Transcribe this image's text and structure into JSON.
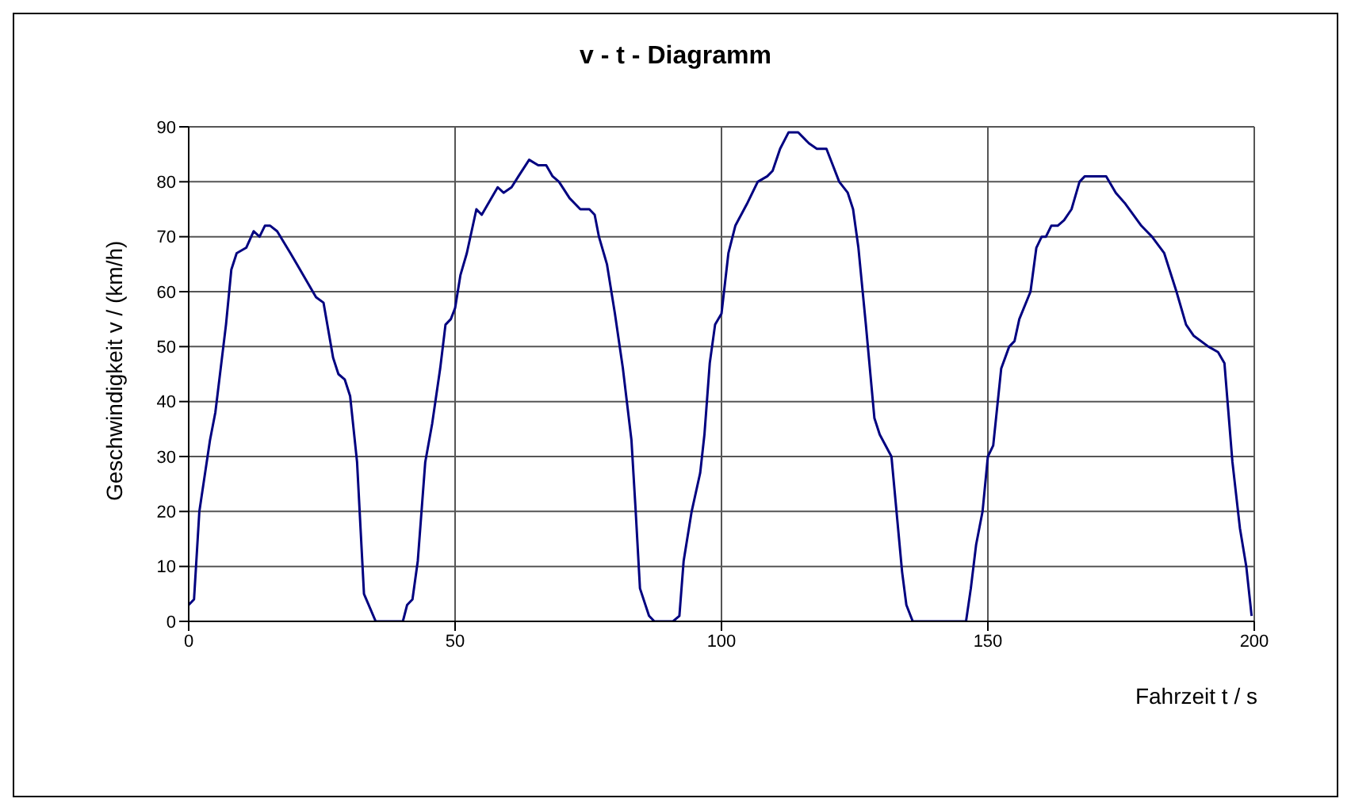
{
  "chart_data": {
    "type": "line",
    "title": "v - t - Diagramm",
    "xlabel": "Fahrzeit t / s",
    "ylabel": "Geschwindigkeit v / (km/h)",
    "series": [
      {
        "color": "#000080",
        "x": [
          0,
          1,
          2,
          4,
          5,
          7,
          8,
          9,
          10.8,
          12.2,
          13.3,
          14.3,
          15.3,
          16.6,
          19.1,
          20.3,
          23.9,
          25.3,
          27.1,
          28.1,
          29.3,
          30.3,
          31.6,
          32.9,
          35.1,
          40.2,
          41,
          42,
          43,
          44.4,
          45.7,
          47.2,
          48.2,
          49.2,
          50,
          51,
          52.2,
          54,
          55,
          58,
          59.1,
          60.6,
          61.9,
          63.9,
          65.6,
          67.1,
          68.3,
          69.5,
          71.5,
          73.5,
          75.2,
          76.2,
          77,
          78.5,
          80,
          81.5,
          83.1,
          83.9,
          84.7,
          86.4,
          87.4,
          90.9,
          92.1,
          92.9,
          94.4,
          96,
          96.8,
          97.8,
          98.8,
          100,
          101.3,
          102.6,
          104.8,
          106.8,
          108.6,
          109.6,
          111,
          112.6,
          114.4,
          116.4,
          117.9,
          119.7,
          120.9,
          122.1,
          123.7,
          124.7,
          125.7,
          127.1,
          128.7,
          129.7,
          131.9,
          133.9,
          134.7,
          135.9,
          145.9,
          146.8,
          147.8,
          149,
          150,
          151,
          152.5,
          154,
          155,
          155.9,
          158,
          159.1,
          160.1,
          160.9,
          161.9,
          163.1,
          164.3,
          165.7,
          167.2,
          168.2,
          172.2,
          174,
          175.8,
          178.8,
          180.8,
          183.1,
          185.4,
          187.2,
          188.6,
          191.4,
          193.2,
          194.4,
          195.9,
          197.3,
          198.5,
          199.5
        ],
        "values": [
          3,
          4,
          20,
          33,
          38,
          54,
          64,
          67,
          68,
          71,
          70,
          72,
          72,
          71,
          67,
          65,
          59,
          58,
          48,
          45,
          44,
          41,
          29,
          5,
          0,
          0,
          3,
          4,
          11,
          29,
          36,
          46,
          54,
          55,
          57,
          63,
          67,
          75,
          74,
          79,
          78,
          79,
          81,
          84,
          83,
          83,
          81,
          80,
          77,
          75,
          75,
          74,
          70,
          65,
          56,
          46,
          33,
          20,
          6,
          1,
          0,
          0,
          1,
          11,
          20,
          27,
          34,
          47,
          54,
          56,
          67,
          72,
          76,
          80,
          81,
          82,
          86,
          89,
          89,
          87,
          86,
          86,
          83,
          80,
          78,
          75,
          68,
          54,
          37,
          34,
          30,
          9,
          3,
          0,
          0,
          6,
          14,
          20,
          30,
          32,
          46,
          50,
          51,
          55,
          60,
          68,
          70,
          70,
          72,
          72,
          73,
          75,
          80,
          81,
          81,
          78,
          76,
          72,
          70,
          67,
          60,
          54,
          52,
          50,
          49,
          47,
          29,
          17,
          10,
          1
        ]
      }
    ],
    "xlim": [
      0,
      200
    ],
    "xticks": [
      0,
      50,
      100,
      150,
      200
    ],
    "ylim": [
      0,
      90
    ],
    "yticks": [
      0,
      10,
      20,
      30,
      40,
      50,
      60,
      70,
      80,
      90
    ],
    "grid": true
  }
}
